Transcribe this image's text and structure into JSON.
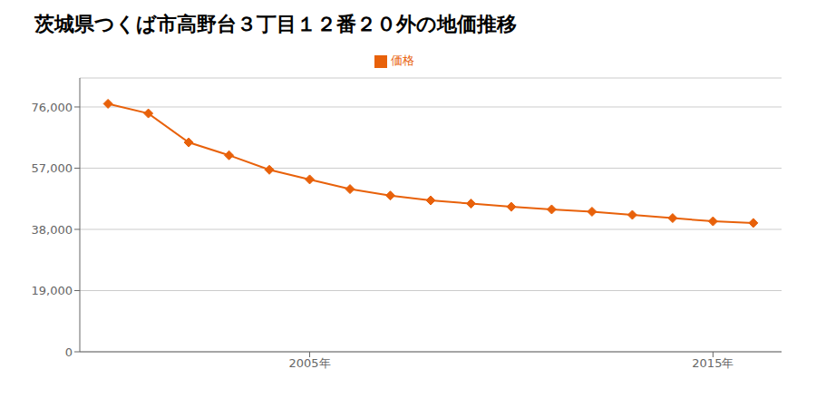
{
  "chart_data": {
    "type": "line",
    "title": "茨城県つくば市高野台３丁目１２番２０外の地価推移",
    "x": [
      2000,
      2001,
      2002,
      2003,
      2004,
      2005,
      2006,
      2007,
      2008,
      2009,
      2010,
      2011,
      2012,
      2013,
      2014,
      2015,
      2016
    ],
    "series": [
      {
        "name": "価格",
        "color": "#E8610A",
        "marker": "diamond",
        "values": [
          77000,
          74000,
          65000,
          61000,
          56500,
          53500,
          50500,
          48500,
          47000,
          46000,
          45000,
          44200,
          43500,
          42500,
          41500,
          40500,
          40000
        ]
      }
    ],
    "xlim": [
      1999.3,
      2016.7
    ],
    "xticks": [
      {
        "value": 2005,
        "label": "2005年"
      },
      {
        "value": 2015,
        "label": "2015年"
      }
    ],
    "ylim": [
      0,
      85000
    ],
    "yticks": [
      0,
      {
        "value": 19000,
        "label": "19,000"
      },
      {
        "value": 38000,
        "label": "38,000"
      },
      {
        "value": 57000,
        "label": "57,000"
      },
      {
        "value": 76000,
        "label": "76,000"
      }
    ],
    "grid": true,
    "legend": "top"
  }
}
